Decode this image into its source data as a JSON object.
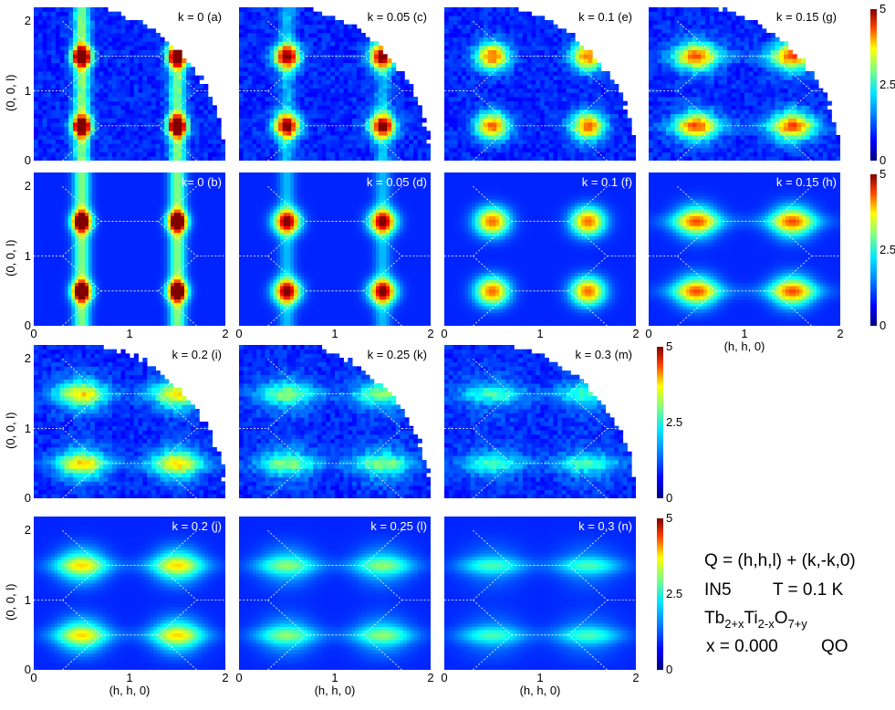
{
  "chart_data": {
    "type": "heatmap",
    "axes": {
      "x_label": "(h, h, 0)",
      "y_label": "(0, 0, l)",
      "x_ticks": [
        "0",
        "1",
        "2"
      ],
      "y_ticks": [
        "0",
        "1",
        "2"
      ],
      "xlim": [
        0,
        2
      ],
      "ylim": [
        0,
        2.2
      ]
    },
    "colorbar": {
      "ticks": [
        "0",
        "2.5",
        "5"
      ],
      "range": [
        0,
        5
      ],
      "colormap": "jet"
    },
    "panels": [
      {
        "label": "k = 0 (a)",
        "k": 0,
        "kind": "data"
      },
      {
        "label": "k = 0.05 (c)",
        "k": 0.05,
        "kind": "data"
      },
      {
        "label": "k = 0.1 (e)",
        "k": 0.1,
        "kind": "data"
      },
      {
        "label": "k = 0.15 (g)",
        "k": 0.15,
        "kind": "data"
      },
      {
        "label": "k= 0 (b)",
        "k": 0,
        "kind": "calc"
      },
      {
        "label": "k = 0.05 (d)",
        "k": 0.05,
        "kind": "calc"
      },
      {
        "label": "k = 0.1 (f)",
        "k": 0.1,
        "kind": "calc"
      },
      {
        "label": "k = 0.15 (h)",
        "k": 0.15,
        "kind": "calc"
      },
      {
        "label": "k = 0.2 (i)",
        "k": 0.2,
        "kind": "data"
      },
      {
        "label": "k = 0.25 (k)",
        "k": 0.25,
        "kind": "data"
      },
      {
        "label": "k = 0.3 (m)",
        "k": 0.3,
        "kind": "data"
      },
      {
        "label": "k = 0.2 (j)",
        "k": 0.2,
        "kind": "calc"
      },
      {
        "label": "k = 0.25 (l)",
        "k": 0.25,
        "kind": "calc"
      },
      {
        "label": "k = 0.3 (n)",
        "k": 0.3,
        "kind": "calc"
      }
    ],
    "peaks_hhl": [
      [
        0.5,
        0.5
      ],
      [
        0.5,
        1.5
      ],
      [
        1.5,
        0.5
      ],
      [
        1.5,
        1.5
      ]
    ]
  },
  "annotation": {
    "q_line": "Q = (h,h,l) + (k,-k,0)",
    "instrument": "IN5",
    "temperature": "T = 0.1 K",
    "formula_base": "Tb",
    "formula_sub1": "2+x",
    "formula_mid": "Ti",
    "formula_sub2": "2-x",
    "formula_o": "O",
    "formula_sub3": "7+y",
    "x_value": "x = 0.000",
    "sample": "QO"
  }
}
